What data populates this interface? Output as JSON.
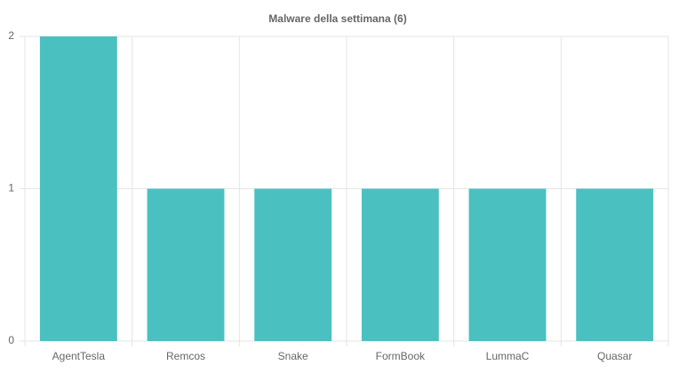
{
  "chart_data": {
    "type": "bar",
    "title": "Malware della settimana (6)",
    "categories": [
      "AgentTesla",
      "Remcos",
      "Snake",
      "FormBook",
      "LummaC",
      "Quasar"
    ],
    "values": [
      2,
      1,
      1,
      1,
      1,
      1
    ],
    "color": "#4bc0c0",
    "ylim": [
      0,
      2
    ],
    "yticks": [
      0,
      1,
      2
    ],
    "grid": true
  }
}
